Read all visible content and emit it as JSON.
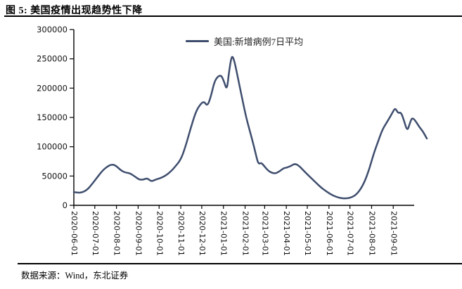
{
  "title": "图 5: 美国疫情出现趋势性下降",
  "source": "数据来源：Wind，东北证券",
  "chart_data": {
    "type": "line",
    "title": "美国疫情出现趋势性下降",
    "legend": "美国:新增病例7日平均",
    "legend_position": "top-center-inside",
    "grid": false,
    "ylim": [
      0,
      300000
    ],
    "y_ticks": [
      0,
      50000,
      100000,
      150000,
      200000,
      250000,
      300000
    ],
    "y_tick_labels": [
      "0",
      "50000",
      "100000",
      "150000",
      "200000",
      "250000",
      "300000"
    ],
    "x_ticks": [
      "2020-06-01",
      "2020-07-01",
      "2020-08-01",
      "2020-09-01",
      "2020-10-01",
      "2020-11-01",
      "2020-12-01",
      "2021-01-01",
      "2021-02-01",
      "2021-03-01",
      "2021-04-01",
      "2021-05-01",
      "2021-06-01",
      "2021-07-01",
      "2021-08-01",
      "2021-09-01"
    ],
    "x_start": "2020-06-01",
    "line_color": "#3f4e6e",
    "axis_color": "#000000",
    "series": [
      {
        "name": "美国:新增病例7日平均",
        "points": [
          [
            "2020-06-01",
            22500
          ],
          [
            "2020-06-07",
            21500
          ],
          [
            "2020-06-13",
            22000
          ],
          [
            "2020-06-20",
            26500
          ],
          [
            "2020-06-27",
            36000
          ],
          [
            "2020-07-04",
            47000
          ],
          [
            "2020-07-11",
            58000
          ],
          [
            "2020-07-18",
            65500
          ],
          [
            "2020-07-25",
            70000
          ],
          [
            "2020-07-31",
            68000
          ],
          [
            "2020-08-07",
            60000
          ],
          [
            "2020-08-13",
            56000
          ],
          [
            "2020-08-20",
            55000
          ],
          [
            "2020-08-27",
            49500
          ],
          [
            "2020-09-03",
            43500
          ],
          [
            "2020-09-09",
            44000
          ],
          [
            "2020-09-14",
            46500
          ],
          [
            "2020-09-20",
            40500
          ],
          [
            "2020-09-26",
            44000
          ],
          [
            "2020-10-03",
            46500
          ],
          [
            "2020-10-10",
            50500
          ],
          [
            "2020-10-17",
            57000
          ],
          [
            "2020-10-24",
            66000
          ],
          [
            "2020-11-01",
            78000
          ],
          [
            "2020-11-08",
            101000
          ],
          [
            "2020-11-15",
            131000
          ],
          [
            "2020-11-22",
            158000
          ],
          [
            "2020-11-28",
            171000
          ],
          [
            "2020-12-04",
            178000
          ],
          [
            "2020-12-09",
            169000
          ],
          [
            "2020-12-14",
            185000
          ],
          [
            "2020-12-19",
            211000
          ],
          [
            "2020-12-24",
            220000
          ],
          [
            "2020-12-29",
            222000
          ],
          [
            "2021-01-02",
            211000
          ],
          [
            "2021-01-06",
            196000
          ],
          [
            "2021-01-09",
            228000
          ],
          [
            "2021-01-12",
            250000
          ],
          [
            "2021-01-14",
            255000
          ],
          [
            "2021-01-17",
            245000
          ],
          [
            "2021-01-22",
            216000
          ],
          [
            "2021-01-28",
            181000
          ],
          [
            "2021-02-03",
            148000
          ],
          [
            "2021-02-08",
            126000
          ],
          [
            "2021-02-12",
            108000
          ],
          [
            "2021-02-16",
            89000
          ],
          [
            "2021-02-20",
            70000
          ],
          [
            "2021-02-24",
            73000
          ],
          [
            "2021-02-28",
            67500
          ],
          [
            "2021-03-06",
            59000
          ],
          [
            "2021-03-12",
            55000
          ],
          [
            "2021-03-17",
            54500
          ],
          [
            "2021-03-23",
            58500
          ],
          [
            "2021-03-28",
            63500
          ],
          [
            "2021-04-02",
            64500
          ],
          [
            "2021-04-08",
            67500
          ],
          [
            "2021-04-13",
            71000
          ],
          [
            "2021-04-18",
            68500
          ],
          [
            "2021-04-24",
            61500
          ],
          [
            "2021-04-30",
            54000
          ],
          [
            "2021-05-07",
            46000
          ],
          [
            "2021-05-14",
            38000
          ],
          [
            "2021-05-21",
            30000
          ],
          [
            "2021-05-28",
            24000
          ],
          [
            "2021-06-04",
            18500
          ],
          [
            "2021-06-11",
            14500
          ],
          [
            "2021-06-18",
            12300
          ],
          [
            "2021-06-24",
            11800
          ],
          [
            "2021-07-01",
            12500
          ],
          [
            "2021-07-08",
            16500
          ],
          [
            "2021-07-15",
            25000
          ],
          [
            "2021-07-22",
            40000
          ],
          [
            "2021-07-29",
            63000
          ],
          [
            "2021-08-04",
            88000
          ],
          [
            "2021-08-10",
            108000
          ],
          [
            "2021-08-16",
            128000
          ],
          [
            "2021-08-22",
            140000
          ],
          [
            "2021-08-28",
            152000
          ],
          [
            "2021-09-01",
            161000
          ],
          [
            "2021-09-04",
            166000
          ],
          [
            "2021-09-08",
            157000
          ],
          [
            "2021-09-12",
            159000
          ],
          [
            "2021-09-16",
            146000
          ],
          [
            "2021-09-21",
            126000
          ],
          [
            "2021-09-25",
            141000
          ],
          [
            "2021-09-28",
            150000
          ],
          [
            "2021-10-03",
            144000
          ],
          [
            "2021-10-08",
            134000
          ],
          [
            "2021-10-13",
            127000
          ],
          [
            "2021-10-19",
            114000
          ]
        ]
      }
    ]
  }
}
